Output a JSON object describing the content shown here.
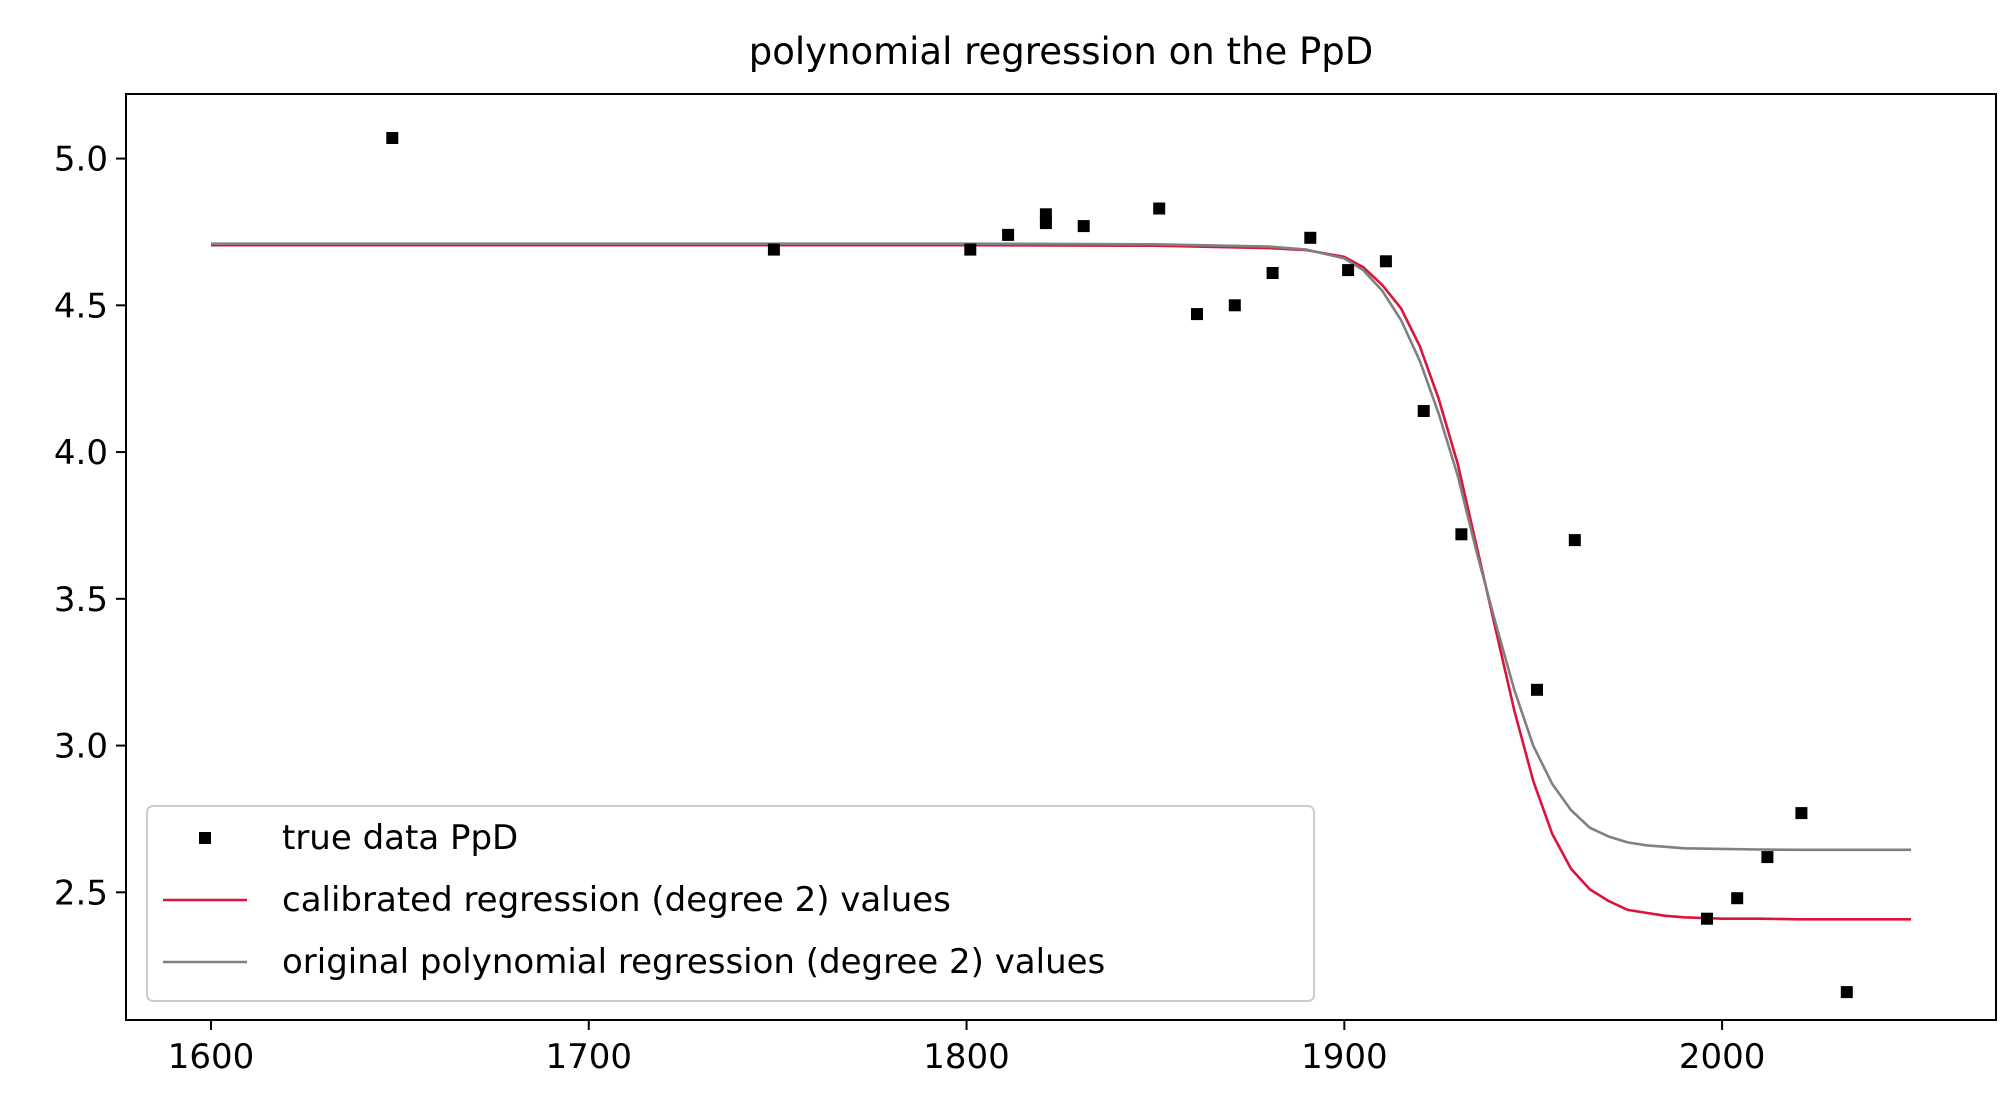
{
  "chart_data": {
    "type": "scatter",
    "title": "polynomial regression on the PpD",
    "xlabel": "",
    "ylabel": "",
    "xlim": [
      1577.5,
      2072.5
    ],
    "ylim": [
      2.065,
      5.22
    ],
    "xticks": [
      1600,
      1700,
      1800,
      1900,
      2000
    ],
    "xtick_labels": [
      "1600",
      "1700",
      "1800",
      "1900",
      "2000"
    ],
    "yticks": [
      2.5,
      3.0,
      3.5,
      4.0,
      4.5,
      5.0
    ],
    "ytick_labels": [
      "2.5",
      "3.0",
      "3.5",
      "4.0",
      "4.5",
      "5.0"
    ],
    "grid": false,
    "legend_position": "lower-left",
    "series": [
      {
        "name": "true data PpD",
        "kind": "markers",
        "color": "#000000",
        "marker": "square",
        "x": [
          1648,
          1749,
          1801,
          1811,
          1821,
          1821,
          1831,
          1851,
          1861,
          1871,
          1881,
          1891,
          1901,
          1911,
          1921,
          1931,
          1951,
          1961,
          1996,
          2004,
          2012,
          2021,
          2033
        ],
        "y": [
          5.07,
          4.69,
          4.69,
          4.74,
          4.81,
          4.78,
          4.77,
          4.83,
          4.47,
          4.5,
          4.61,
          4.73,
          4.62,
          4.65,
          4.14,
          3.72,
          3.19,
          3.7,
          2.41,
          2.48,
          2.62,
          2.77,
          2.16
        ]
      },
      {
        "name": "calibrated regression (degree 2) values",
        "kind": "line",
        "color": "#dc143c",
        "x": [
          1600,
          1700,
          1800,
          1850,
          1880,
          1890,
          1900,
          1905,
          1910,
          1915,
          1920,
          1925,
          1930,
          1935,
          1940,
          1945,
          1950,
          1955,
          1960,
          1965,
          1970,
          1975,
          1980,
          1985,
          1990,
          2000,
          2010,
          2020,
          2030,
          2050
        ],
        "y": [
          4.705,
          4.705,
          4.705,
          4.703,
          4.695,
          4.688,
          4.665,
          4.63,
          4.57,
          4.49,
          4.36,
          4.18,
          3.96,
          3.68,
          3.4,
          3.12,
          2.88,
          2.7,
          2.58,
          2.51,
          2.47,
          2.44,
          2.43,
          2.42,
          2.415,
          2.41,
          2.41,
          2.408,
          2.408,
          2.408
        ]
      },
      {
        "name": "original polynomial regression (degree 2) values",
        "kind": "line",
        "color": "#808080",
        "x": [
          1600,
          1700,
          1800,
          1850,
          1880,
          1890,
          1900,
          1905,
          1910,
          1915,
          1920,
          1925,
          1930,
          1935,
          1940,
          1945,
          1950,
          1955,
          1960,
          1965,
          1970,
          1975,
          1980,
          1985,
          1990,
          2000,
          2010,
          2020,
          2030,
          2050
        ],
        "y": [
          4.71,
          4.71,
          4.71,
          4.708,
          4.7,
          4.69,
          4.66,
          4.62,
          4.55,
          4.45,
          4.31,
          4.13,
          3.92,
          3.66,
          3.42,
          3.19,
          3.0,
          2.87,
          2.78,
          2.72,
          2.69,
          2.67,
          2.66,
          2.655,
          2.65,
          2.648,
          2.646,
          2.645,
          2.645,
          2.645
        ]
      }
    ]
  }
}
